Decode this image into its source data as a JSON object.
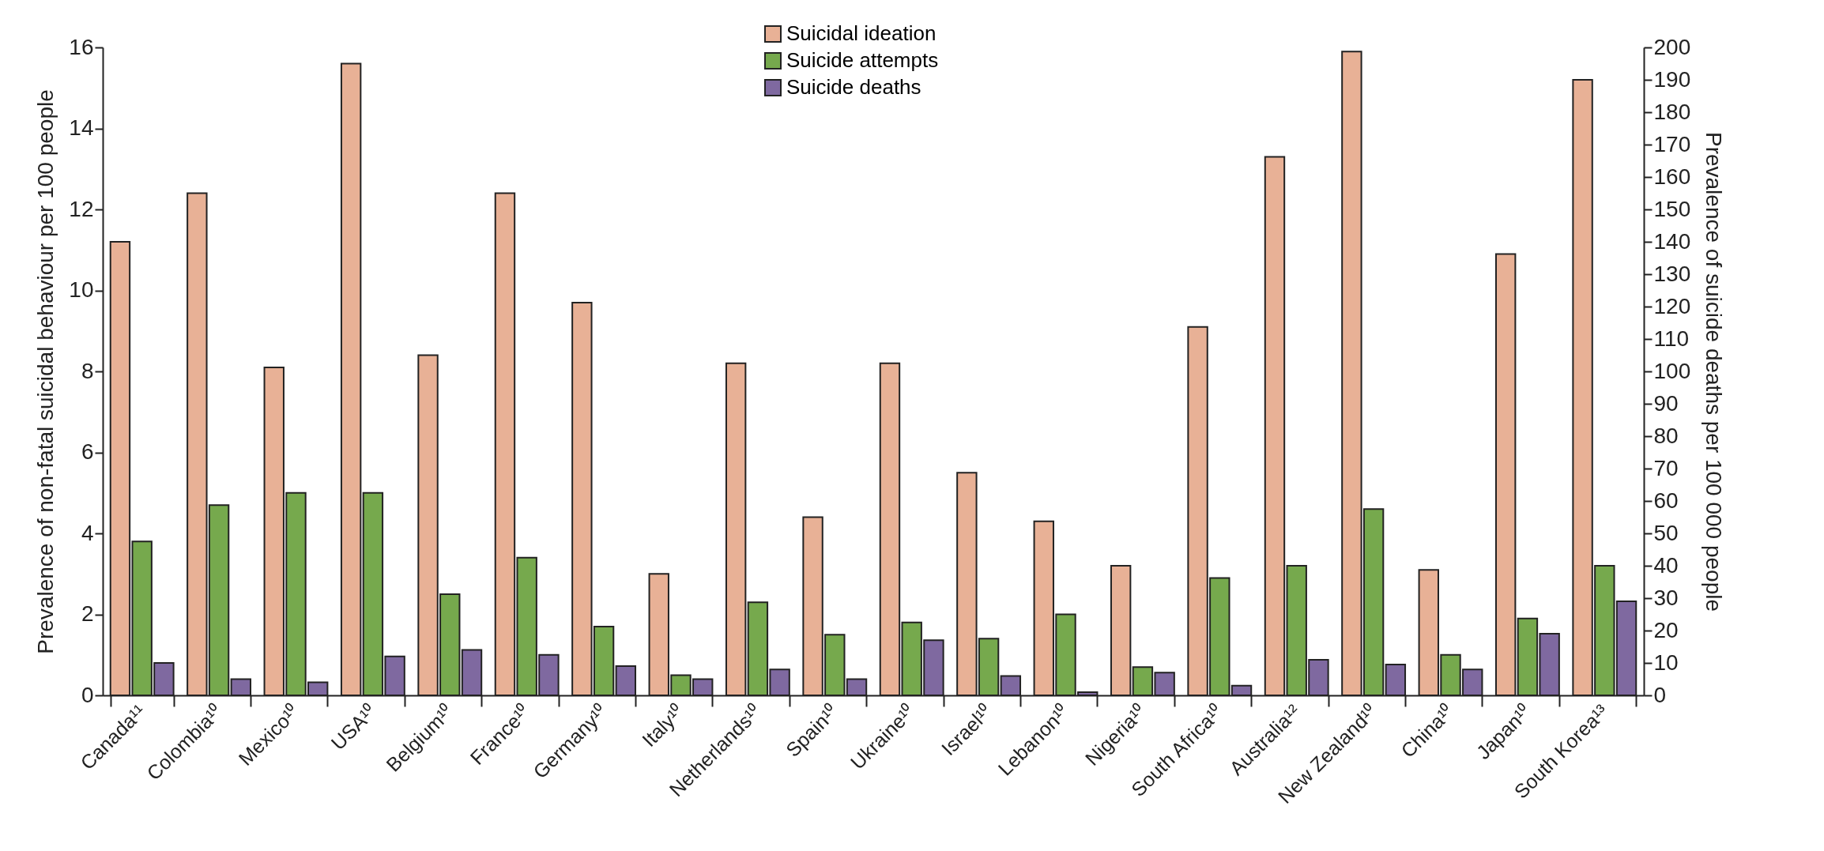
{
  "chart_data": {
    "type": "bar",
    "categories": [
      "Canada¹¹",
      "Colombia¹⁰",
      "Mexico¹⁰",
      "USA¹⁰",
      "Belgium¹⁰",
      "France¹⁰",
      "Germany¹⁰",
      "Italy¹⁰",
      "Netherlands¹⁰",
      "Spain¹⁰",
      "Ukraine¹⁰",
      "Israel¹⁰",
      "Lebanon¹⁰",
      "Nigeria¹⁰",
      "South Africa¹⁰",
      "Australia¹²",
      "New Zealand¹⁰",
      "China¹⁰",
      "Japan¹⁰",
      "South Korea¹³"
    ],
    "ylabel": "Prevalence of non-fatal suicidal behaviour per 100 people",
    "y2label": "Prevalence of suicide deaths per 100 000 people",
    "ylim": [
      0,
      16
    ],
    "yticks": [
      0,
      2,
      4,
      6,
      8,
      10,
      12,
      14,
      16
    ],
    "y2lim": [
      0,
      200
    ],
    "y2ticks": [
      0,
      10,
      20,
      30,
      40,
      50,
      60,
      70,
      80,
      90,
      100,
      110,
      120,
      130,
      140,
      150,
      160,
      170,
      180,
      190,
      200
    ],
    "grid": false,
    "legend": "top",
    "series": [
      {
        "name": "Suicidal ideation",
        "color": "#e8b196",
        "values": [
          11.2,
          12.4,
          8.1,
          15.6,
          8.4,
          12.4,
          9.7,
          3.0,
          8.2,
          4.4,
          8.2,
          5.5,
          4.3,
          3.2,
          9.1,
          13.3,
          15.9,
          3.1,
          10.9,
          15.2
        ]
      },
      {
        "name": "Suicide attempts",
        "color": "#76a94d",
        "values": [
          3.8,
          4.7,
          5.0,
          5.0,
          2.5,
          3.4,
          1.7,
          0.5,
          2.3,
          1.5,
          1.8,
          1.4,
          2.0,
          0.7,
          2.9,
          3.2,
          4.6,
          1.0,
          1.9,
          3.2
        ]
      },
      {
        "name": "Suicide deaths",
        "color": "#7f69a0",
        "axis": "y2",
        "values": [
          10,
          5,
          4,
          12,
          14,
          12.5,
          9,
          5,
          8,
          5,
          17,
          6,
          1,
          7,
          3,
          11,
          9.5,
          8,
          19,
          29
        ]
      }
    ]
  }
}
